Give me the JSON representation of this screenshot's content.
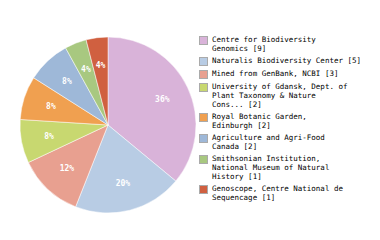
{
  "chart_data": {
    "type": "pie",
    "categories": [
      "Centre for Biodiversity\nGenomics [9]",
      "Naturalis Biodiversity Center [5]",
      "Mined from GenBank, NCBI [3]",
      "University of Gdansk, Dept. of\nPlant Taxonomy & Nature\nCons... [2]",
      "Royal Botanic Garden,\nEdinburgh [2]",
      "Agriculture and Agri-Food\nCanada [2]",
      "Smithsonian Institution,\nNational Museum of Natural\nHistory [1]",
      "Genoscope, Centre National de\nSequencage [1]"
    ],
    "values": [
      36,
      20,
      12,
      8,
      8,
      8,
      4,
      4
    ],
    "value_labels": [
      "36%",
      "20%",
      "12%",
      "8%",
      "8%",
      "8%",
      "4%",
      "4%"
    ],
    "colors": [
      "#d9b3d9",
      "#b8cce4",
      "#e8a090",
      "#c8d870",
      "#f0a050",
      "#9eb8d8",
      "#a8c880",
      "#d06040"
    ],
    "data_labels": true,
    "legend": "right"
  }
}
